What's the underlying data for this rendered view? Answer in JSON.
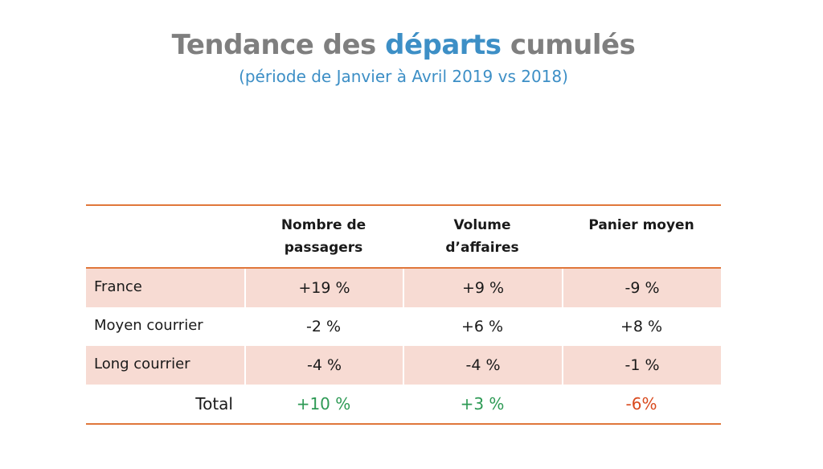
{
  "title": {
    "part1": "Tendance des ",
    "highlight": "départs",
    "part2": " cumulés",
    "subtitle": "(période de Janvier à Avril 2019 vs 2018)"
  },
  "table": {
    "headers": [
      "",
      "Nombre de passagers",
      "Volume d’affaires",
      "Panier moyen"
    ],
    "header_lines": {
      "col1": [
        "Nombre de",
        "passagers"
      ],
      "col2": [
        "Volume",
        "d’affaires"
      ],
      "col3": [
        "Panier moyen"
      ]
    },
    "rows": [
      {
        "label": "France",
        "values": [
          "+19 %",
          "+9 %",
          "-9 %"
        ]
      },
      {
        "label": "Moyen courrier",
        "values": [
          "-2 %",
          "+6 %",
          "+8 %"
        ]
      },
      {
        "label": "Long courrier",
        "values": [
          "-4 %",
          "-4 %",
          "-1 %"
        ]
      }
    ],
    "total": {
      "label": "Total",
      "values": [
        "+10 %",
        "+3 %",
        "-6%"
      ]
    }
  },
  "colors": {
    "title_gray": "#7f7f7f",
    "accent_blue": "#3d8fc6",
    "rule_orange": "#e0773b",
    "shade": "#f7dbd3",
    "positive": "#2e9a55",
    "negative": "#d94a1e"
  }
}
